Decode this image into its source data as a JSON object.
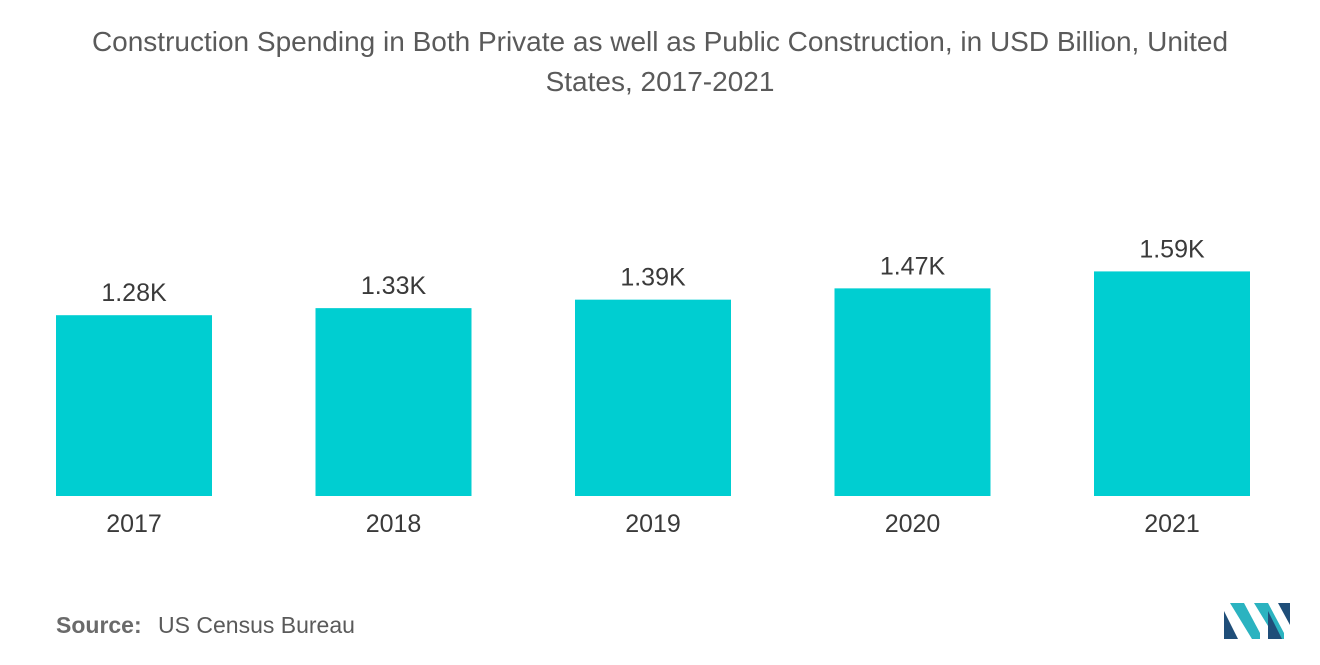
{
  "chart_data": {
    "type": "bar",
    "title_lines": [
      "Construction Spending in Both Private as well as Public Construction, in USD Billion, United",
      "States, 2017-2021"
    ],
    "categories": [
      "2017",
      "2018",
      "2019",
      "2020",
      "2021"
    ],
    "values": [
      1280,
      1330,
      1390,
      1470,
      1590
    ],
    "data_labels": [
      "1.28K",
      "1.33K",
      "1.39K",
      "1.47K",
      "1.59K"
    ],
    "bar_color": "#00CED1",
    "xlabel": "",
    "ylabel": "",
    "ylim": [
      0,
      1600
    ],
    "grid": false,
    "legend": "none"
  },
  "source": {
    "label": "Source:",
    "text": "US Census Bureau"
  },
  "logo": {
    "icon": "mordor-logo-icon",
    "colors": [
      "#1f4e79",
      "#2bb3c0"
    ]
  }
}
